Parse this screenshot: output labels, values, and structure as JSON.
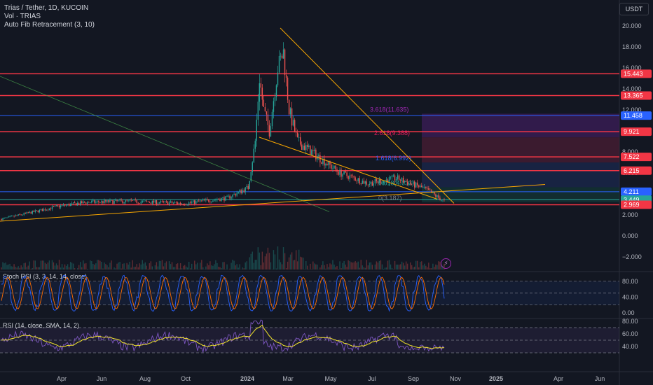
{
  "header": {
    "title": "Trias / Tether, 1D, KUCOIN",
    "volume": "Vol · TRIAS",
    "fib": "Auto Fib Retracement (3, 10)",
    "currency": "USDT"
  },
  "chart_data": {
    "type": "candlestick",
    "price_axis_ticks": [
      "20.000",
      "18.000",
      "16.000",
      "14.000",
      "12.000",
      "10.000",
      "8.000",
      "6.000",
      "4.000",
      "2.000",
      "0.000",
      "−2.000"
    ],
    "time_axis_ticks": [
      "Apr",
      "Jun",
      "Aug",
      "Oct",
      "2024",
      "Mar",
      "May",
      "Jul",
      "Sep",
      "Nov",
      "2025",
      "Apr",
      "Jun"
    ],
    "horizontal_levels": [
      {
        "value": 15.443,
        "label": "15.443",
        "color": "#f23645"
      },
      {
        "value": 13.365,
        "label": "13.365",
        "color": "#f23645"
      },
      {
        "value": 11.458,
        "label": "11.458",
        "color": "#2962ff"
      },
      {
        "value": 9.921,
        "label": "9.921",
        "color": "#f23645"
      },
      {
        "value": 7.522,
        "label": "7.522",
        "color": "#f23645"
      },
      {
        "value": 6.215,
        "label": "6.215",
        "color": "#f23645"
      },
      {
        "value": 4.211,
        "label": "4.211",
        "color": "#2962ff"
      },
      {
        "value": 3.449,
        "label": "3.449",
        "color": "#26a69a"
      },
      {
        "value": 2.969,
        "label": "2.969",
        "color": "#f23645"
      }
    ],
    "fib_labels": [
      {
        "text": "3.618(11.635)",
        "color": "#9c27b0"
      },
      {
        "text": "2.618(9.388)",
        "color": "#e91e63"
      },
      {
        "text": "1.618(6.992)",
        "color": "#2962ff"
      },
      {
        "text": "0.618(4.633)",
        "color": "#26a69a"
      },
      {
        "text": "0(3.187)",
        "color": "#787b86"
      }
    ],
    "stoch_rsi": {
      "title": "Stoch RSI (3, 3, 14, 14, close)",
      "ticks": [
        "80.00",
        "40.00",
        "0.00"
      ]
    },
    "rsi": {
      "title": "RSI (14, close, SMA, 14, 2)",
      "ticks": [
        "80.00",
        "60.00",
        "40.00"
      ]
    }
  },
  "colors": {
    "up": "#26a69a",
    "down": "#ef5350",
    "stoch_k": "#2962ff",
    "stoch_d": "#ff6d00",
    "rsi": "#7e57c2",
    "rsi_ma": "#f5e72c"
  }
}
